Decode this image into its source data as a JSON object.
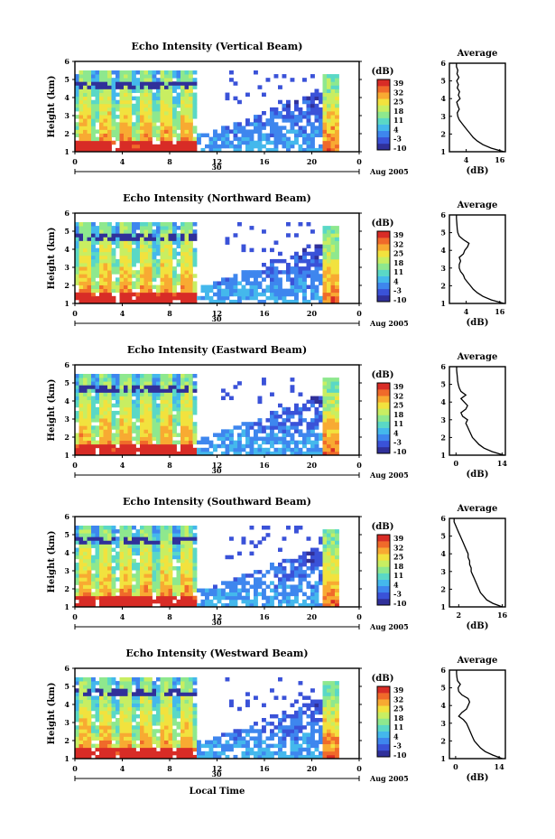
{
  "figure": {
    "xlabel": "Local Time"
  },
  "colorbar": {
    "unit": "(dB)",
    "ticks": [
      "39",
      "32",
      "25",
      "18",
      "11",
      "4",
      "-3",
      "-10"
    ],
    "colors": [
      "#30309a",
      "#3a52d8",
      "#3e86ee",
      "#44b8ec",
      "#5ad8c6",
      "#8ee88e",
      "#c8ee62",
      "#f2e23e",
      "#f8aa32",
      "#f06a2a",
      "#d82c26"
    ]
  },
  "chart_data": [
    {
      "type": "heatmap",
      "title": "Echo Intensity (Vertical Beam)",
      "ylabel": "Height (km)",
      "x_ticks": [
        "0",
        "4",
        "8",
        "12",
        "16",
        "20",
        "0"
      ],
      "date_label": "30",
      "date_right": "Aug 2005",
      "ylim": [
        1,
        6
      ],
      "profile": {
        "title": "Average",
        "xlabel": "(dB)",
        "x_ticks": [
          "4",
          "16"
        ],
        "xlim": [
          -2,
          18
        ],
        "height": [
          1.0,
          1.2,
          1.4,
          1.6,
          1.8,
          2.0,
          2.2,
          2.4,
          2.6,
          2.8,
          3.0,
          3.2,
          3.4,
          3.6,
          3.8,
          4.0,
          4.2,
          4.4,
          4.6,
          4.8,
          5.0,
          5.2,
          5.4,
          5.6,
          5.8,
          6.0
        ],
        "intensity": [
          17.5,
          13,
          10,
          8,
          6.5,
          5.5,
          4.5,
          3.5,
          2.5,
          1.5,
          1.0,
          0.8,
          1.5,
          1.0,
          0.6,
          1.8,
          1.2,
          1.6,
          0.8,
          1.2,
          0.6,
          1.4,
          0.7,
          1.0,
          0.5,
          0.5
        ]
      }
    },
    {
      "type": "heatmap",
      "title": "Echo Intensity (Northward Beam)",
      "ylabel": "Height (km)",
      "x_ticks": [
        "0",
        "4",
        "8",
        "12",
        "16",
        "20",
        "0"
      ],
      "date_label": "30",
      "date_right": "Aug 2005",
      "ylim": [
        1,
        6
      ],
      "profile": {
        "title": "Average",
        "xlabel": "(dB)",
        "x_ticks": [
          "4",
          "16"
        ],
        "xlim": [
          -2,
          18
        ],
        "height": [
          1.0,
          1.2,
          1.4,
          1.6,
          1.8,
          2.0,
          2.2,
          2.4,
          2.6,
          2.8,
          3.0,
          3.2,
          3.4,
          3.6,
          3.8,
          4.0,
          4.2,
          4.4,
          4.6,
          4.8,
          5.0,
          5.2,
          5.4,
          5.6,
          5.8,
          6.0
        ],
        "intensity": [
          17.5,
          13,
          10,
          8,
          6.5,
          5.5,
          4.5,
          3.5,
          3.0,
          2.0,
          1.5,
          1.5,
          2.0,
          1.5,
          3.0,
          3.5,
          4.5,
          5.0,
          3.0,
          1.5,
          1.0,
          0.8,
          0.7,
          0.6,
          0.5,
          0.5
        ]
      }
    },
    {
      "type": "heatmap",
      "title": "Echo Intensity (Eastward Beam)",
      "ylabel": "Height (km)",
      "x_ticks": [
        "0",
        "4",
        "8",
        "12",
        "16",
        "20",
        "0"
      ],
      "date_label": "30",
      "date_right": "Aug 2005",
      "ylim": [
        1,
        6
      ],
      "profile": {
        "title": "Average",
        "xlabel": "(dB)",
        "x_ticks": [
          "0",
          "14"
        ],
        "xlim": [
          -2,
          15
        ],
        "height": [
          1.0,
          1.2,
          1.4,
          1.6,
          1.8,
          2.0,
          2.2,
          2.4,
          2.6,
          2.8,
          3.0,
          3.2,
          3.4,
          3.6,
          3.8,
          4.0,
          4.2,
          4.4,
          4.6,
          4.8,
          5.0,
          5.2,
          5.4,
          5.6,
          5.8,
          6.0
        ],
        "intensity": [
          14.5,
          11,
          8.5,
          7,
          6,
          5,
          4.5,
          4.0,
          3.5,
          3.0,
          3.5,
          2.0,
          1.5,
          3.0,
          3.5,
          2.5,
          1.5,
          3.0,
          1.5,
          1.0,
          0.7,
          0.5,
          0.4,
          0.3,
          0.2,
          0.2
        ]
      }
    },
    {
      "type": "heatmap",
      "title": "Echo Intensity (Southward Beam)",
      "ylabel": "Height (km)",
      "x_ticks": [
        "0",
        "4",
        "8",
        "12",
        "16",
        "20",
        "0"
      ],
      "date_label": "30",
      "date_right": "Aug 2005",
      "ylim": [
        1,
        6
      ],
      "profile": {
        "title": "Average",
        "xlabel": "(dB)",
        "x_ticks": [
          "2",
          "16"
        ],
        "xlim": [
          -1,
          17
        ],
        "height": [
          1.0,
          1.2,
          1.4,
          1.6,
          1.8,
          2.0,
          2.2,
          2.4,
          2.6,
          2.8,
          3.0,
          3.2,
          3.4,
          3.6,
          3.8,
          4.0,
          4.2,
          4.4,
          4.6,
          4.8,
          5.0,
          5.2,
          5.4,
          5.6,
          5.8,
          6.0
        ],
        "intensity": [
          16,
          13,
          11,
          10,
          9,
          8.5,
          8,
          7.5,
          7,
          6.5,
          6,
          6,
          5.5,
          5.5,
          5,
          5,
          4.5,
          4,
          3.5,
          3,
          2.5,
          2,
          1.5,
          1,
          0.5,
          0.5
        ]
      }
    },
    {
      "type": "heatmap",
      "title": "Echo Intensity (Westward Beam)",
      "ylabel": "Height (km)",
      "x_ticks": [
        "0",
        "4",
        "8",
        "12",
        "16",
        "20",
        "0"
      ],
      "date_label": "30",
      "date_right": "Aug 2005",
      "ylim": [
        1,
        6
      ],
      "profile": {
        "title": "Average",
        "xlabel": "(dB)",
        "x_ticks": [
          "0",
          "14"
        ],
        "xlim": [
          -2,
          16
        ],
        "height": [
          1.0,
          1.2,
          1.4,
          1.6,
          1.8,
          2.0,
          2.2,
          2.4,
          2.6,
          2.8,
          3.0,
          3.2,
          3.4,
          3.6,
          3.8,
          4.0,
          4.2,
          4.4,
          4.6,
          4.8,
          5.0,
          5.2,
          5.4,
          5.6,
          5.8,
          6.0
        ],
        "intensity": [
          15,
          12,
          9.5,
          8,
          7,
          6,
          5.5,
          5.0,
          4.5,
          4.0,
          3.5,
          2.5,
          1.0,
          2.0,
          3.5,
          4.0,
          4.5,
          4.0,
          2.0,
          1.0,
          0.8,
          1.5,
          0.6,
          0.4,
          0.3,
          0.3
        ]
      }
    }
  ]
}
